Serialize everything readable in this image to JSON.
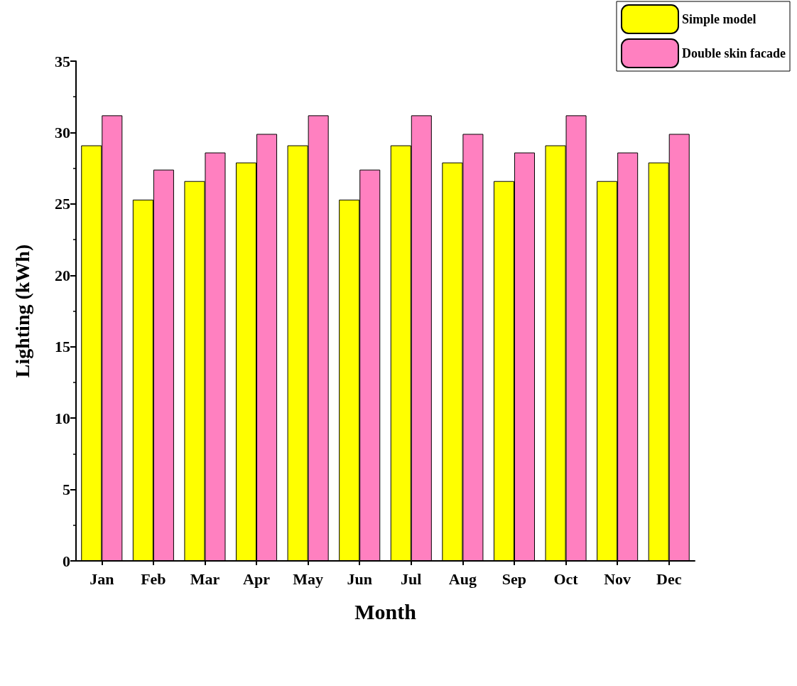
{
  "chart_data": {
    "type": "bar",
    "xlabel": "Month",
    "ylabel": "Lighting (kWh)",
    "categories": [
      "Jan",
      "Feb",
      "Mar",
      "Apr",
      "May",
      "Jun",
      "Jul",
      "Aug",
      "Sep",
      "Oct",
      "Nov",
      "Dec"
    ],
    "series": [
      {
        "name": "Simple model",
        "color": "#ffff00",
        "values": [
          29.1,
          25.3,
          26.6,
          27.9,
          29.1,
          25.3,
          29.1,
          27.9,
          26.6,
          29.1,
          26.6,
          27.9
        ]
      },
      {
        "name": "Double skin facade",
        "color": "#ff80c0",
        "values": [
          31.2,
          27.4,
          28.6,
          29.9,
          31.2,
          27.4,
          31.2,
          29.9,
          28.6,
          31.2,
          28.6,
          29.9
        ]
      }
    ],
    "ylim": [
      0,
      35
    ],
    "yticks": [
      0,
      5,
      10,
      15,
      20,
      25,
      30,
      35
    ],
    "grid": false,
    "legend": "top right"
  }
}
